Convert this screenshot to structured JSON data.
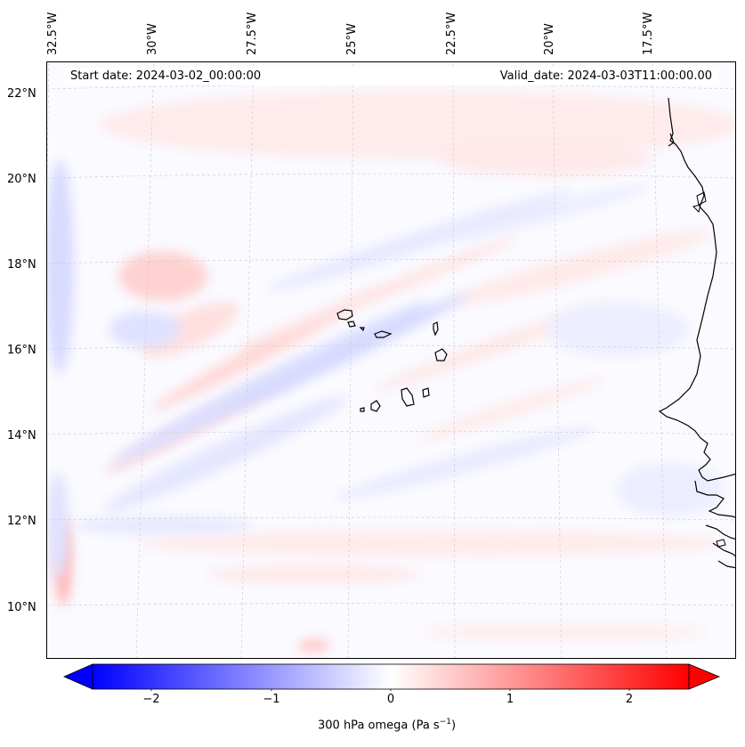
{
  "map": {
    "longitude_labels": [
      "32.5°W",
      "30°W",
      "27.5°W",
      "25°W",
      "22.5°W",
      "20°W",
      "17.5°W"
    ],
    "latitude_labels": [
      "22°N",
      "20°N",
      "18°N",
      "16°N",
      "14°N",
      "12°N",
      "10°N"
    ]
  },
  "annotations": {
    "start_date": "Start date: 2024-03-02_00:00:00",
    "valid_date": "Valid_date: 2024-03-03T11:00:00.00"
  },
  "colorbar": {
    "ticks": [
      "−2",
      "−1",
      "0",
      "1",
      "2"
    ],
    "label_main": "300 hPa omega (Pa s",
    "label_sup": "−1",
    "label_end": ")",
    "min_color": "#0000ff",
    "mid_color": "#ffffff",
    "max_color": "#ff0000"
  }
}
